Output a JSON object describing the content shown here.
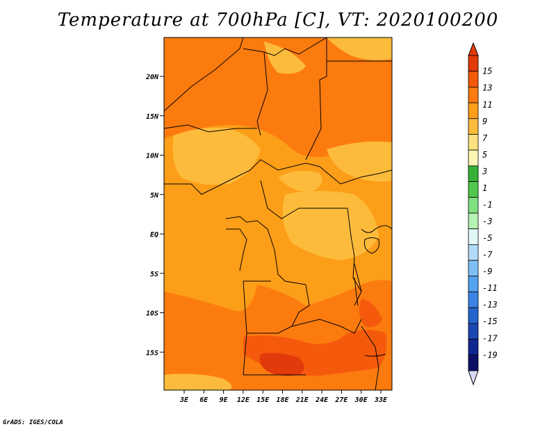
{
  "title": "Temperature at 700hPa [C], VT: 2020100200",
  "credit": "GrADS: IGES/COLA",
  "map": {
    "lat_labels": [
      "20N",
      "15N",
      "10N",
      "5N",
      "EQ",
      "5S",
      "10S",
      "15S"
    ],
    "lon_labels": [
      "3E",
      "6E",
      "9E",
      "12E",
      "15E",
      "18E",
      "21E",
      "24E",
      "27E",
      "30E",
      "33E"
    ]
  },
  "colorbar": {
    "labels": [
      "15",
      "13",
      "11",
      "9",
      "7",
      "5",
      "3",
      "1",
      "-1",
      "-3",
      "-5",
      "-7",
      "-9",
      "-11",
      "-13",
      "-15",
      "-17",
      "-19"
    ],
    "colors": [
      "#e23a0b",
      "#f55a0c",
      "#fc7b0f",
      "#fd9e18",
      "#fdbb3c",
      "#fde180",
      "#fff6b5",
      "#37b139",
      "#4fc64e",
      "#7fe17e",
      "#b5f2b3",
      "#e2f8f7",
      "#b1daf8",
      "#7ebff5",
      "#54a3ef",
      "#3c84e4",
      "#2563ce",
      "#1b47b1",
      "#0f2691",
      "#0b1066"
    ],
    "top_arrow_color": "#e23a0b",
    "bottom_arrow_color": "#d8d8f8"
  }
}
